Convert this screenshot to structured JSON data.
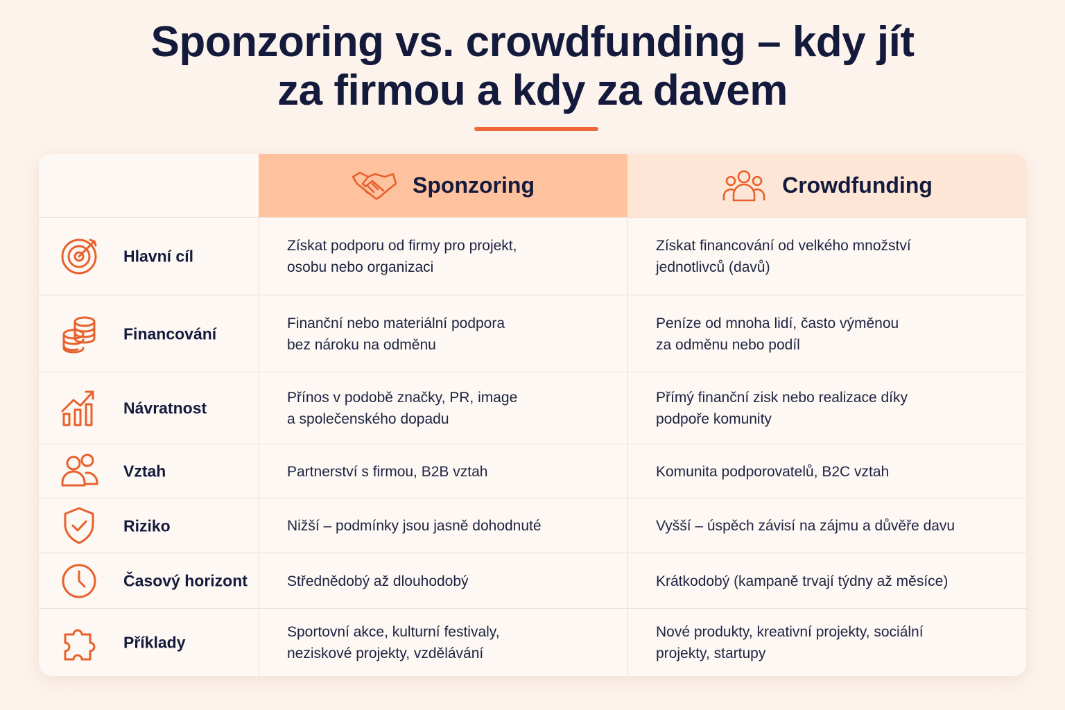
{
  "header": {
    "title_lines": [
      "Sponzoring vs. crowdfunding – kdy jít",
      "za firmou a kdy za davem"
    ]
  },
  "table": {
    "columns": [
      "Sponzoring",
      "Crowdfunding"
    ],
    "rows": [
      {
        "label": "Hlavní cíl",
        "cells": [
          [
            "Získat podporu od firmy pro projekt,",
            "osobu nebo organizaci"
          ],
          [
            "Získat financování od velkého množství",
            "jednotlivců (davů)"
          ]
        ]
      },
      {
        "label": "Financování",
        "cells": [
          [
            "Finanční nebo materiální podpora",
            "bez nároku na odměnu"
          ],
          [
            "Peníze od mnoha lidí, často výměnou",
            "za odměnu nebo podíl"
          ]
        ]
      },
      {
        "label": "Návratnost",
        "cells": [
          [
            "Přínos v podobě značky, PR, image",
            "a společenského dopadu"
          ],
          [
            "Přímý finanční zisk nebo realizace díky",
            "podpoře komunity"
          ]
        ]
      },
      {
        "label": "Vztah",
        "cells": [
          [
            "Partnerství s firmou, B2B vztah"
          ],
          [
            "Komunita podporovatelů, B2C vztah"
          ]
        ]
      },
      {
        "label": "Riziko",
        "cells": [
          [
            "Nižší – podmínky jsou jasně dohodnuté"
          ],
          [
            "Vyšší – úspěch závisí na zájmu a důvěře davu"
          ]
        ]
      },
      {
        "label": "Časový horizont",
        "cells": [
          [
            "Střednědobý až dlouhodobý"
          ],
          [
            "Krátkodobý (kampaně trvají týdny až měsíce)"
          ]
        ]
      },
      {
        "label": "Příklady",
        "cells": [
          [
            "Sportovní akce, kulturní festivaly,",
            "neziskové projekty, vzdělávání"
          ],
          [
            "Nové produkty, kreativní projekty, sociální",
            "projekty, startupy"
          ]
        ]
      }
    ]
  }
}
